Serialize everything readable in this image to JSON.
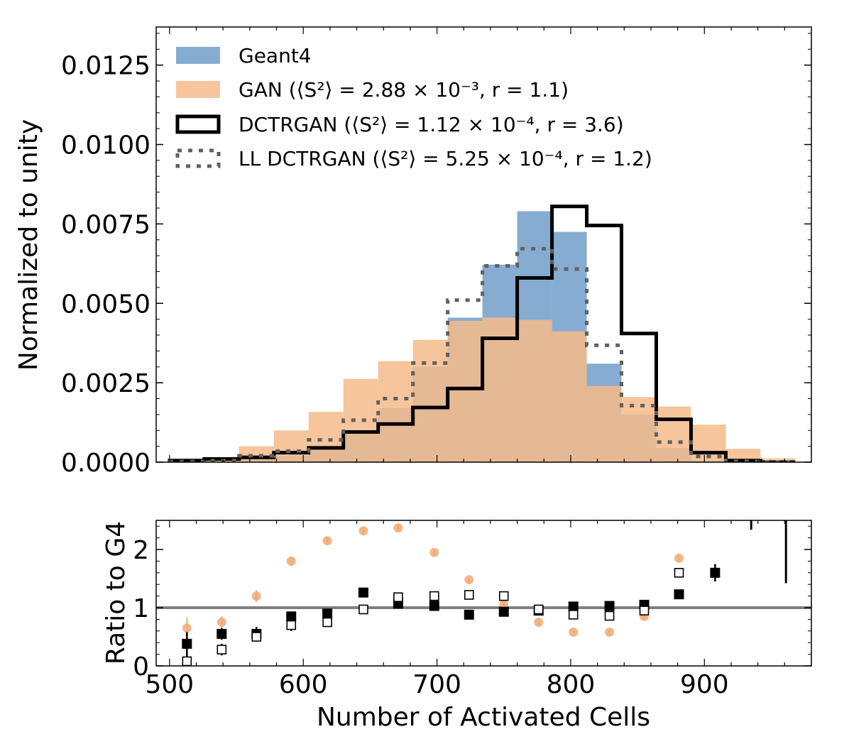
{
  "chart_data": [
    {
      "type": "histogram",
      "ylabel": "Normalized to unity",
      "xlim": [
        490,
        980
      ],
      "ylim": [
        0,
        0.0137
      ],
      "yticks": [
        "0.0000",
        "0.0025",
        "0.0050",
        "0.0075",
        "0.0100",
        "0.0125"
      ],
      "ytick_values": [
        0,
        0.0025,
        0.005,
        0.0075,
        0.01,
        0.0125
      ],
      "bin_edges": [
        500,
        526,
        552,
        578,
        604,
        630,
        656,
        682,
        708,
        734,
        760,
        786,
        812,
        838,
        864,
        890,
        916,
        942,
        968
      ],
      "legend_placement": "top-left",
      "series": [
        {
          "name": "Geant4",
          "style": "filled",
          "color": "#7fa8cf",
          "values": [
            2e-05,
            6e-05,
            0.00012,
            0.0002,
            0.0004,
            0.00088,
            0.0017,
            0.003,
            0.00455,
            0.00622,
            0.0079,
            0.00725,
            0.0031,
            0.0015,
            0.00045,
            5e-05,
            0.0,
            0.0
          ]
        },
        {
          "name": "GAN",
          "style": "filled",
          "color": "#f5bb8a",
          "values": [
            2e-05,
            5e-05,
            0.0005,
            0.001,
            0.00158,
            0.00262,
            0.00318,
            0.00385,
            0.00445,
            0.00455,
            0.00448,
            0.00412,
            0.0024,
            0.00205,
            0.00175,
            0.00118,
            0.00042,
            0.00012
          ]
        },
        {
          "name": "DCTRGAN",
          "style": "step",
          "color": "#000000",
          "values": [
            5e-05,
            0.0001,
            0.00015,
            0.0003,
            0.00045,
            0.00095,
            0.0012,
            0.00172,
            0.00232,
            0.0039,
            0.0058,
            0.00805,
            0.00745,
            0.00405,
            0.00135,
            0.0003,
            5e-05,
            0.0
          ]
        },
        {
          "name": "LL DCTRGAN",
          "style": "dotted-step",
          "color": "#606060",
          "values": [
            2e-05,
            5e-05,
            0.0002,
            0.00035,
            0.0007,
            0.00132,
            0.002,
            0.00312,
            0.0051,
            0.00618,
            0.00672,
            0.00608,
            0.00368,
            0.00178,
            0.00063,
            0.00018,
            3e-05,
            0.0
          ]
        }
      ]
    },
    {
      "type": "scatter",
      "xlabel": "Number of Activated Cells",
      "ylabel": "Ratio to G4",
      "xlim": [
        490,
        980
      ],
      "ylim": [
        0,
        2.5
      ],
      "xticks": [
        "500",
        "600",
        "700",
        "800",
        "900"
      ],
      "xtick_values": [
        500,
        600,
        700,
        800,
        900
      ],
      "yticks": [
        "0",
        "1",
        "2"
      ],
      "ytick_values": [
        0,
        1,
        2
      ],
      "reference_line": 1,
      "series": [
        {
          "name": "GAN",
          "marker": "circle",
          "color": "#f0a56a",
          "x": [
            513,
            539,
            565,
            591,
            618,
            645,
            671,
            698,
            724,
            750,
            776,
            802,
            829,
            855,
            881
          ],
          "y": [
            0.65,
            0.75,
            1.2,
            1.8,
            2.15,
            2.32,
            2.37,
            1.95,
            1.48,
            1.05,
            0.75,
            0.58,
            0.58,
            0.85,
            1.85
          ],
          "err": [
            0.18,
            0.1,
            0.1,
            0.08,
            0.06,
            0.05,
            0.05,
            0.05,
            0.05,
            0.05,
            0.05,
            0.05,
            0.05,
            0.05,
            0.06
          ]
        },
        {
          "name": "DCTRGAN",
          "marker": "filled-square",
          "color": "#000000",
          "x": [
            513,
            539,
            565,
            591,
            618,
            645,
            671,
            698,
            724,
            750,
            776,
            802,
            829,
            855,
            881,
            908
          ],
          "y": [
            0.38,
            0.55,
            0.55,
            0.85,
            0.9,
            1.26,
            1.07,
            1.03,
            0.88,
            0.93,
            0.95,
            1.02,
            1.03,
            1.05,
            1.23,
            1.6
          ],
          "err": [
            0.2,
            0.1,
            0.12,
            0.06,
            0.04,
            0.03,
            0.03,
            0.03,
            0.03,
            0.03,
            0.03,
            0.03,
            0.03,
            0.04,
            0.05,
            0.15
          ]
        },
        {
          "name": "LL DCTRGAN",
          "marker": "open-square",
          "color": "#000000",
          "x": [
            513,
            539,
            565,
            591,
            618,
            645,
            671,
            698,
            724,
            750,
            776,
            802,
            829,
            855,
            881
          ],
          "y": [
            0.08,
            0.28,
            0.5,
            0.7,
            0.75,
            0.97,
            1.18,
            1.2,
            1.22,
            1.2,
            0.97,
            0.88,
            0.86,
            0.95,
            1.6
          ],
          "err": [
            0.12,
            0.1,
            0.08,
            0.1,
            0.06,
            0.04,
            0.04,
            0.04,
            0.04,
            0.04,
            0.04,
            0.04,
            0.04,
            0.04,
            0.06
          ]
        }
      ],
      "vertical_bars": [
        {
          "x": 935,
          "y_low": 2.34,
          "y_high": 2.5
        },
        {
          "x": 961,
          "y_low": 1.42,
          "y_high": 2.5
        }
      ]
    }
  ]
}
